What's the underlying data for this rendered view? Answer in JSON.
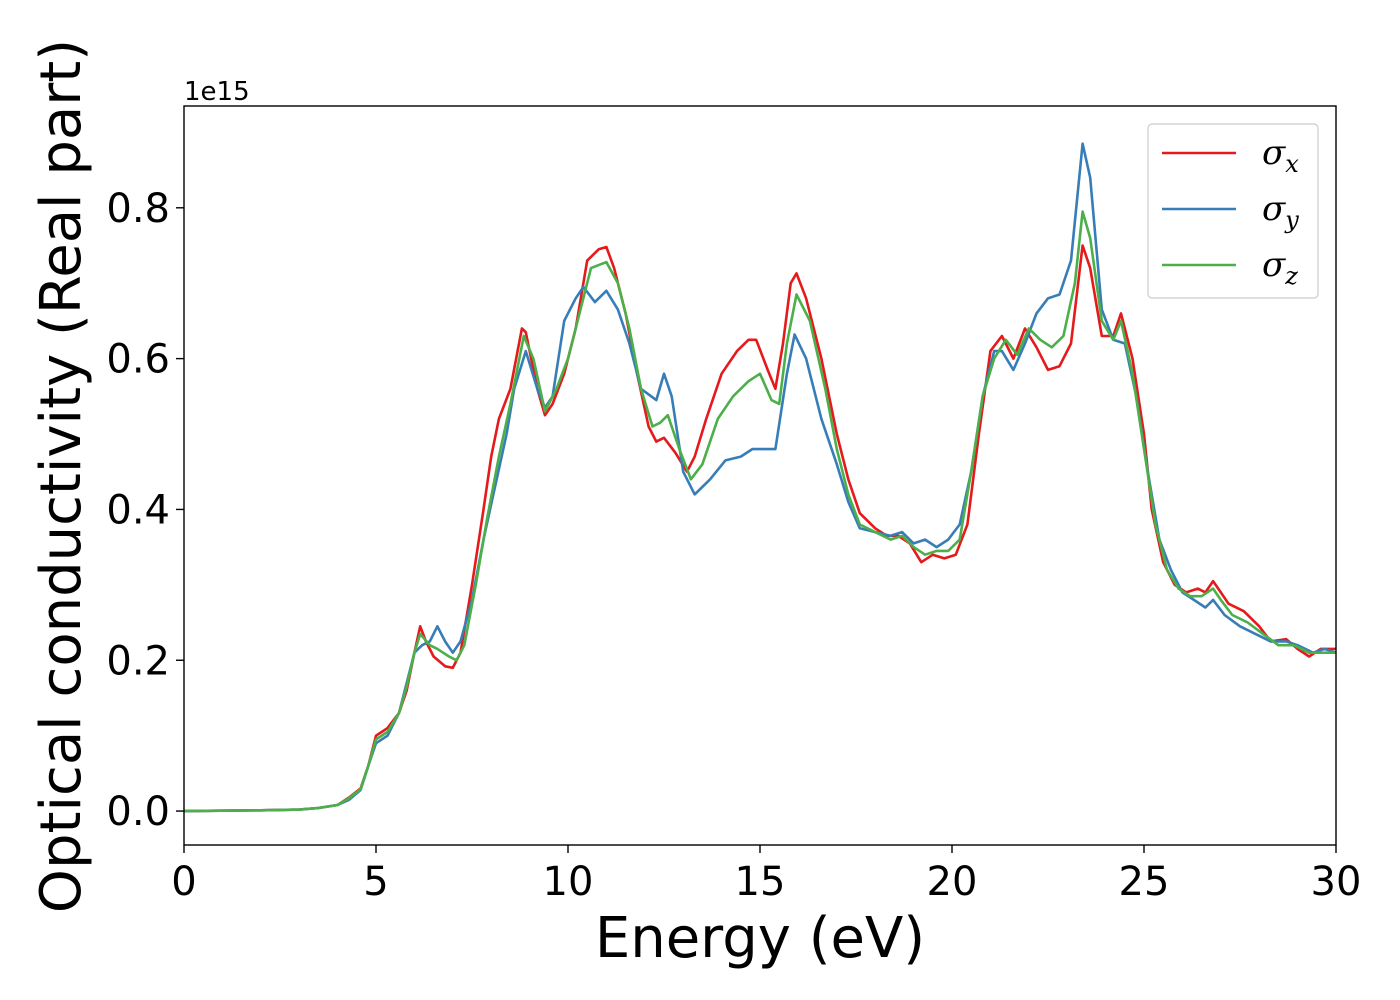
{
  "chart_data": {
    "type": "line",
    "title": "",
    "xlabel": "Energy (eV)",
    "ylabel": "Optical conductivity (Real part)",
    "y_offset_label": "1e15",
    "xlim": [
      0,
      30
    ],
    "ylim": [
      -0.045,
      0.935
    ],
    "x_ticks": [
      0,
      5,
      10,
      15,
      20,
      25,
      30
    ],
    "x_tick_labels": [
      "0",
      "5",
      "10",
      "15",
      "20",
      "25",
      "30"
    ],
    "y_ticks": [
      0.0,
      0.2,
      0.4,
      0.6,
      0.8
    ],
    "y_tick_labels": [
      "0.0",
      "0.2",
      "0.4",
      "0.6",
      "0.8"
    ],
    "grid": false,
    "legend_position": "top-right",
    "series": [
      {
        "name": "σx",
        "symbol": "σ",
        "subscript": "x",
        "color": "#e41a1c",
        "points": [
          [
            0,
            0.0
          ],
          [
            2,
            0.001
          ],
          [
            3,
            0.002
          ],
          [
            3.5,
            0.004
          ],
          [
            4,
            0.008
          ],
          [
            4.3,
            0.018
          ],
          [
            4.6,
            0.03
          ],
          [
            4.8,
            0.06
          ],
          [
            5,
            0.1
          ],
          [
            5.3,
            0.11
          ],
          [
            5.6,
            0.13
          ],
          [
            5.8,
            0.16
          ],
          [
            6,
            0.21
          ],
          [
            6.15,
            0.245
          ],
          [
            6.3,
            0.225
          ],
          [
            6.5,
            0.205
          ],
          [
            6.8,
            0.192
          ],
          [
            7,
            0.19
          ],
          [
            7.2,
            0.21
          ],
          [
            7.5,
            0.3
          ],
          [
            7.8,
            0.4
          ],
          [
            8,
            0.47
          ],
          [
            8.2,
            0.52
          ],
          [
            8.5,
            0.56
          ],
          [
            8.8,
            0.64
          ],
          [
            8.9,
            0.635
          ],
          [
            9.2,
            0.56
          ],
          [
            9.4,
            0.525
          ],
          [
            9.6,
            0.54
          ],
          [
            9.9,
            0.58
          ],
          [
            10.2,
            0.64
          ],
          [
            10.5,
            0.73
          ],
          [
            10.8,
            0.745
          ],
          [
            11,
            0.748
          ],
          [
            11.2,
            0.72
          ],
          [
            11.5,
            0.66
          ],
          [
            11.8,
            0.58
          ],
          [
            12.1,
            0.51
          ],
          [
            12.3,
            0.49
          ],
          [
            12.5,
            0.495
          ],
          [
            12.8,
            0.475
          ],
          [
            13.1,
            0.45
          ],
          [
            13.3,
            0.47
          ],
          [
            13.6,
            0.52
          ],
          [
            14,
            0.58
          ],
          [
            14.4,
            0.61
          ],
          [
            14.7,
            0.625
          ],
          [
            14.9,
            0.625
          ],
          [
            15.2,
            0.585
          ],
          [
            15.4,
            0.56
          ],
          [
            15.6,
            0.62
          ],
          [
            15.8,
            0.7
          ],
          [
            15.95,
            0.713
          ],
          [
            16.2,
            0.68
          ],
          [
            16.6,
            0.6
          ],
          [
            17,
            0.5
          ],
          [
            17.3,
            0.44
          ],
          [
            17.6,
            0.395
          ],
          [
            18,
            0.375
          ],
          [
            18.3,
            0.365
          ],
          [
            18.6,
            0.365
          ],
          [
            18.9,
            0.355
          ],
          [
            19.2,
            0.33
          ],
          [
            19.5,
            0.34
          ],
          [
            19.8,
            0.335
          ],
          [
            20.1,
            0.34
          ],
          [
            20.4,
            0.38
          ],
          [
            20.7,
            0.5
          ],
          [
            21,
            0.61
          ],
          [
            21.3,
            0.63
          ],
          [
            21.6,
            0.6
          ],
          [
            21.9,
            0.64
          ],
          [
            22.2,
            0.615
          ],
          [
            22.5,
            0.585
          ],
          [
            22.8,
            0.59
          ],
          [
            23.1,
            0.62
          ],
          [
            23.4,
            0.75
          ],
          [
            23.6,
            0.72
          ],
          [
            23.9,
            0.63
          ],
          [
            24.2,
            0.63
          ],
          [
            24.4,
            0.66
          ],
          [
            24.7,
            0.6
          ],
          [
            25,
            0.5
          ],
          [
            25.2,
            0.4
          ],
          [
            25.5,
            0.33
          ],
          [
            25.8,
            0.3
          ],
          [
            26.1,
            0.29
          ],
          [
            26.4,
            0.295
          ],
          [
            26.6,
            0.29
          ],
          [
            26.8,
            0.305
          ],
          [
            27,
            0.29
          ],
          [
            27.2,
            0.275
          ],
          [
            27.6,
            0.265
          ],
          [
            28,
            0.245
          ],
          [
            28.3,
            0.225
          ],
          [
            28.7,
            0.228
          ],
          [
            29,
            0.215
          ],
          [
            29.3,
            0.205
          ],
          [
            29.6,
            0.215
          ],
          [
            30,
            0.215
          ]
        ]
      },
      {
        "name": "σy",
        "symbol": "σ",
        "subscript": "y",
        "color": "#377eb8",
        "points": [
          [
            0,
            0.0
          ],
          [
            2,
            0.001
          ],
          [
            3,
            0.002
          ],
          [
            3.5,
            0.004
          ],
          [
            4,
            0.008
          ],
          [
            4.3,
            0.015
          ],
          [
            4.6,
            0.028
          ],
          [
            4.8,
            0.06
          ],
          [
            5,
            0.09
          ],
          [
            5.3,
            0.1
          ],
          [
            5.6,
            0.13
          ],
          [
            5.8,
            0.17
          ],
          [
            6,
            0.21
          ],
          [
            6.2,
            0.22
          ],
          [
            6.4,
            0.225
          ],
          [
            6.6,
            0.245
          ],
          [
            6.8,
            0.225
          ],
          [
            7,
            0.21
          ],
          [
            7.2,
            0.225
          ],
          [
            7.5,
            0.28
          ],
          [
            7.8,
            0.36
          ],
          [
            8.1,
            0.43
          ],
          [
            8.4,
            0.5
          ],
          [
            8.6,
            0.56
          ],
          [
            8.9,
            0.61
          ],
          [
            9.2,
            0.56
          ],
          [
            9.4,
            0.535
          ],
          [
            9.6,
            0.55
          ],
          [
            9.9,
            0.65
          ],
          [
            10.2,
            0.68
          ],
          [
            10.4,
            0.695
          ],
          [
            10.7,
            0.675
          ],
          [
            11,
            0.69
          ],
          [
            11.3,
            0.665
          ],
          [
            11.6,
            0.62
          ],
          [
            11.9,
            0.56
          ],
          [
            12.3,
            0.545
          ],
          [
            12.5,
            0.58
          ],
          [
            12.7,
            0.55
          ],
          [
            13,
            0.45
          ],
          [
            13.3,
            0.42
          ],
          [
            13.7,
            0.44
          ],
          [
            14.1,
            0.465
          ],
          [
            14.5,
            0.47
          ],
          [
            14.8,
            0.48
          ],
          [
            15.1,
            0.48
          ],
          [
            15.4,
            0.48
          ],
          [
            15.7,
            0.58
          ],
          [
            15.9,
            0.632
          ],
          [
            16.2,
            0.6
          ],
          [
            16.6,
            0.52
          ],
          [
            17,
            0.46
          ],
          [
            17.3,
            0.41
          ],
          [
            17.6,
            0.375
          ],
          [
            18,
            0.37
          ],
          [
            18.4,
            0.365
          ],
          [
            18.7,
            0.37
          ],
          [
            19,
            0.355
          ],
          [
            19.3,
            0.36
          ],
          [
            19.6,
            0.35
          ],
          [
            19.9,
            0.36
          ],
          [
            20.2,
            0.38
          ],
          [
            20.5,
            0.45
          ],
          [
            20.8,
            0.55
          ],
          [
            21.1,
            0.61
          ],
          [
            21.3,
            0.61
          ],
          [
            21.6,
            0.585
          ],
          [
            21.9,
            0.62
          ],
          [
            22.2,
            0.66
          ],
          [
            22.5,
            0.68
          ],
          [
            22.8,
            0.685
          ],
          [
            23.1,
            0.73
          ],
          [
            23.4,
            0.885
          ],
          [
            23.6,
            0.84
          ],
          [
            23.9,
            0.665
          ],
          [
            24.2,
            0.625
          ],
          [
            24.5,
            0.62
          ],
          [
            24.8,
            0.55
          ],
          [
            25.1,
            0.45
          ],
          [
            25.4,
            0.36
          ],
          [
            25.7,
            0.32
          ],
          [
            26,
            0.29
          ],
          [
            26.3,
            0.28
          ],
          [
            26.6,
            0.27
          ],
          [
            26.8,
            0.28
          ],
          [
            27.1,
            0.26
          ],
          [
            27.5,
            0.245
          ],
          [
            27.9,
            0.235
          ],
          [
            28.3,
            0.225
          ],
          [
            28.7,
            0.225
          ],
          [
            29,
            0.22
          ],
          [
            29.4,
            0.21
          ],
          [
            29.7,
            0.215
          ],
          [
            30,
            0.21
          ]
        ]
      },
      {
        "name": "σz",
        "symbol": "σ",
        "subscript": "z",
        "color": "#4daf4a",
        "points": [
          [
            0,
            0.0
          ],
          [
            2,
            0.001
          ],
          [
            3,
            0.002
          ],
          [
            3.5,
            0.004
          ],
          [
            4,
            0.008
          ],
          [
            4.3,
            0.017
          ],
          [
            4.6,
            0.029
          ],
          [
            4.8,
            0.06
          ],
          [
            5,
            0.095
          ],
          [
            5.3,
            0.105
          ],
          [
            5.6,
            0.13
          ],
          [
            5.8,
            0.165
          ],
          [
            6,
            0.21
          ],
          [
            6.15,
            0.235
          ],
          [
            6.4,
            0.22
          ],
          [
            6.6,
            0.215
          ],
          [
            6.9,
            0.205
          ],
          [
            7.1,
            0.2
          ],
          [
            7.3,
            0.22
          ],
          [
            7.6,
            0.3
          ],
          [
            7.9,
            0.39
          ],
          [
            8.2,
            0.47
          ],
          [
            8.5,
            0.54
          ],
          [
            8.85,
            0.63
          ],
          [
            9.1,
            0.6
          ],
          [
            9.4,
            0.53
          ],
          [
            9.7,
            0.56
          ],
          [
            10,
            0.6
          ],
          [
            10.3,
            0.66
          ],
          [
            10.6,
            0.72
          ],
          [
            11,
            0.728
          ],
          [
            11.3,
            0.7
          ],
          [
            11.6,
            0.64
          ],
          [
            11.9,
            0.56
          ],
          [
            12.2,
            0.51
          ],
          [
            12.4,
            0.515
          ],
          [
            12.6,
            0.525
          ],
          [
            12.9,
            0.48
          ],
          [
            13.2,
            0.44
          ],
          [
            13.5,
            0.46
          ],
          [
            13.9,
            0.52
          ],
          [
            14.3,
            0.55
          ],
          [
            14.7,
            0.57
          ],
          [
            15,
            0.58
          ],
          [
            15.3,
            0.545
          ],
          [
            15.5,
            0.54
          ],
          [
            15.7,
            0.62
          ],
          [
            15.95,
            0.685
          ],
          [
            16.3,
            0.65
          ],
          [
            16.7,
            0.56
          ],
          [
            17,
            0.48
          ],
          [
            17.3,
            0.42
          ],
          [
            17.6,
            0.38
          ],
          [
            18,
            0.37
          ],
          [
            18.4,
            0.36
          ],
          [
            18.7,
            0.365
          ],
          [
            19,
            0.35
          ],
          [
            19.3,
            0.34
          ],
          [
            19.6,
            0.345
          ],
          [
            19.9,
            0.345
          ],
          [
            20.2,
            0.36
          ],
          [
            20.5,
            0.45
          ],
          [
            20.8,
            0.55
          ],
          [
            21.1,
            0.6
          ],
          [
            21.4,
            0.625
          ],
          [
            21.7,
            0.605
          ],
          [
            22,
            0.64
          ],
          [
            22.3,
            0.625
          ],
          [
            22.6,
            0.615
          ],
          [
            22.9,
            0.63
          ],
          [
            23.2,
            0.7
          ],
          [
            23.4,
            0.795
          ],
          [
            23.6,
            0.76
          ],
          [
            23.9,
            0.65
          ],
          [
            24.2,
            0.625
          ],
          [
            24.4,
            0.65
          ],
          [
            24.7,
            0.58
          ],
          [
            25,
            0.48
          ],
          [
            25.3,
            0.38
          ],
          [
            25.6,
            0.32
          ],
          [
            25.9,
            0.295
          ],
          [
            26.2,
            0.285
          ],
          [
            26.5,
            0.285
          ],
          [
            26.8,
            0.295
          ],
          [
            27,
            0.28
          ],
          [
            27.3,
            0.26
          ],
          [
            27.7,
            0.25
          ],
          [
            28.1,
            0.235
          ],
          [
            28.5,
            0.22
          ],
          [
            28.9,
            0.22
          ],
          [
            29.3,
            0.21
          ],
          [
            29.7,
            0.21
          ],
          [
            30,
            0.21
          ]
        ]
      }
    ]
  }
}
